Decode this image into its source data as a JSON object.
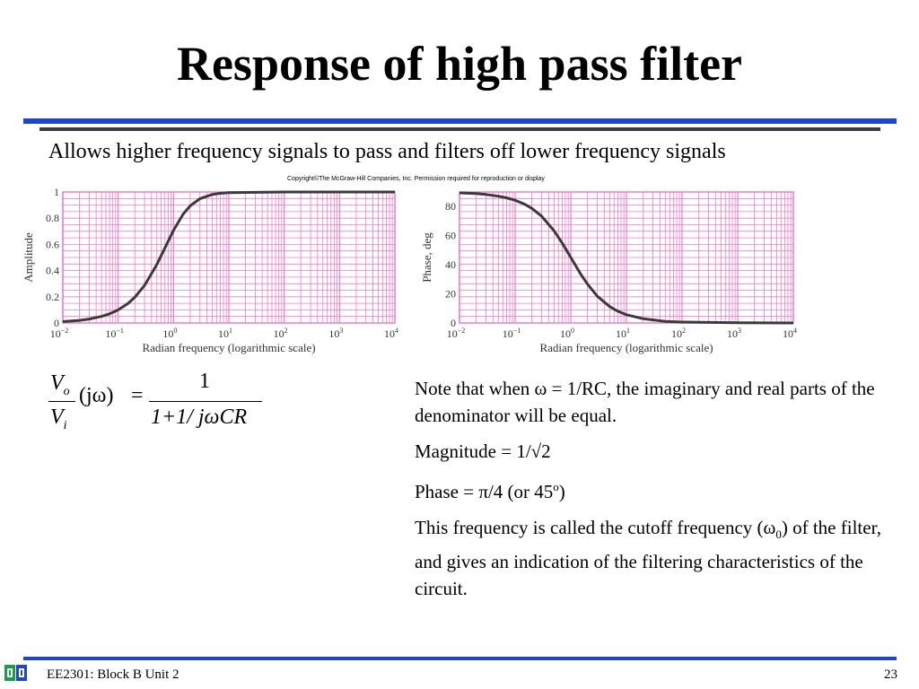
{
  "slide": {
    "title": "Response of high pass filter",
    "subtitle": "Allows higher frequency signals to pass and filters off lower frequency signals",
    "copyright": "Copyright©The McGraw-Hill Companies, Inc. Permission required for reproduction or display"
  },
  "formula": {
    "num_left": "V",
    "num_left_sub": "o",
    "den_left": "V",
    "den_left_sub": "i",
    "argument": "(jω)",
    "equals": "=",
    "num_right": "1",
    "den_right": "1+1/ jωCR"
  },
  "notes": {
    "p1": "Note that when ω = 1/RC, the imaginary and real parts of the denominator will be equal.",
    "p2": "Magnitude = 1/√2",
    "p3_a": "Phase = π/4 (or 45",
    "p3_sup": "o",
    "p3_b": ")",
    "p4_a": "This frequency is called the cutoff frequency (ω",
    "p4_sub": "0",
    "p4_b": ") of the filter, and gives an indication of the filtering characteristics of the circuit."
  },
  "footer": {
    "course": "EE2301: Block B Unit 2",
    "page": "23",
    "logo_icon": "university-logo-icon"
  },
  "colors": {
    "accent_blue": "#1f45c8",
    "grid_pink": "#f07bc8",
    "curve": "#3a3a3a"
  },
  "chart_data": [
    {
      "type": "line",
      "title": "",
      "xlabel": "Radian frequency (logarithmic scale)",
      "ylabel": "Amplitude",
      "xscale": "log",
      "xlim": [
        0.01,
        10000
      ],
      "ylim": [
        0,
        1
      ],
      "xticks": [
        0.01,
        0.1,
        1,
        10,
        100,
        1000,
        10000
      ],
      "xtick_base": [
        "10",
        "10",
        "10",
        "10",
        "10",
        "10",
        "10"
      ],
      "xtick_exp": [
        "−2",
        "−1",
        "0",
        "1",
        "2",
        "3",
        "4"
      ],
      "yticks": [
        0,
        0.2,
        0.4,
        0.6,
        0.8,
        1
      ],
      "ytick_labels": [
        "0",
        "0.2",
        "0.4",
        "0.6",
        "0.8",
        "1"
      ],
      "grid": true,
      "series": [
        {
          "x": [
            0.01,
            0.02,
            0.03,
            0.05,
            0.07,
            0.1,
            0.15,
            0.2,
            0.3,
            0.5,
            0.7,
            1,
            1.5,
            2,
            3,
            5,
            7,
            10,
            100,
            1000,
            10000
          ],
          "y": [
            0.01,
            0.02,
            0.03,
            0.05,
            0.07,
            0.1,
            0.148,
            0.196,
            0.287,
            0.447,
            0.573,
            0.707,
            0.832,
            0.894,
            0.949,
            0.981,
            0.99,
            0.995,
            1.0,
            1.0,
            1.0
          ]
        }
      ]
    },
    {
      "type": "line",
      "title": "",
      "xlabel": "Radian frequency (logarithmic scale)",
      "ylabel": "Phase, deg",
      "xscale": "log",
      "xlim": [
        0.01,
        10000
      ],
      "ylim": [
        0,
        90
      ],
      "xticks": [
        0.01,
        0.1,
        1,
        10,
        100,
        1000,
        10000
      ],
      "xtick_base": [
        "10",
        "10",
        "10",
        "10",
        "10",
        "10",
        "10"
      ],
      "xtick_exp": [
        "−2",
        "−1",
        "0",
        "1",
        "2",
        "3",
        "4"
      ],
      "yticks": [
        0,
        20,
        40,
        60,
        80
      ],
      "ytick_labels": [
        "0",
        "20",
        "40",
        "60",
        "80"
      ],
      "grid": true,
      "series": [
        {
          "x": [
            0.01,
            0.02,
            0.03,
            0.05,
            0.07,
            0.1,
            0.15,
            0.2,
            0.3,
            0.5,
            0.7,
            1,
            1.5,
            2,
            3,
            5,
            7,
            10,
            20,
            50,
            100,
            1000,
            10000
          ],
          "y": [
            89.4,
            88.9,
            88.3,
            87.1,
            86.0,
            84.3,
            81.5,
            78.7,
            73.3,
            63.4,
            55.0,
            45.0,
            33.7,
            26.6,
            18.4,
            11.3,
            8.1,
            5.7,
            2.9,
            1.1,
            0.6,
            0.1,
            0.0
          ]
        }
      ]
    }
  ]
}
